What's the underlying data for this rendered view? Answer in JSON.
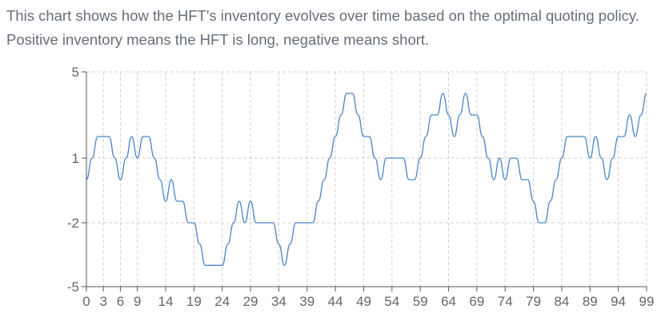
{
  "description": "This chart shows how the HFT's inventory evolves over time based on the optimal quoting policy. Positive inventory means the HFT is long, negative means short.",
  "chart_data": {
    "type": "line",
    "title": "",
    "xlabel": "",
    "ylabel": "",
    "grid": true,
    "xlim": [
      0,
      99
    ],
    "ylim": [
      -5,
      5
    ],
    "x_ticks": [
      0,
      3,
      6,
      9,
      14,
      19,
      24,
      29,
      34,
      39,
      44,
      49,
      54,
      59,
      64,
      69,
      74,
      79,
      84,
      89,
      94,
      99
    ],
    "y_ticks": [
      5,
      1,
      -2,
      -5
    ],
    "series": [
      {
        "color": "#4a86c8",
        "x": [
          0,
          1,
          2,
          3,
          4,
          5,
          6,
          7,
          8,
          9,
          10,
          11,
          12,
          13,
          14,
          15,
          16,
          17,
          18,
          19,
          20,
          21,
          22,
          23,
          24,
          25,
          26,
          27,
          28,
          29,
          30,
          31,
          32,
          33,
          34,
          35,
          36,
          37,
          38,
          39,
          40,
          41,
          42,
          43,
          44,
          45,
          46,
          47,
          48,
          49,
          50,
          51,
          52,
          53,
          54,
          55,
          56,
          57,
          58,
          59,
          60,
          61,
          62,
          63,
          64,
          65,
          66,
          67,
          68,
          69,
          70,
          71,
          72,
          73,
          74,
          75,
          76,
          77,
          78,
          79,
          80,
          81,
          82,
          83,
          84,
          85,
          86,
          87,
          88,
          89,
          90,
          91,
          92,
          93,
          94,
          95,
          96,
          97,
          98,
          99
        ],
        "values": [
          0,
          1,
          2,
          2,
          2,
          1,
          0,
          1,
          2,
          1,
          2,
          2,
          1,
          0,
          -1,
          0,
          -1,
          -1,
          -2,
          -2,
          -3,
          -4,
          -4,
          -4,
          -4,
          -3,
          -2,
          -1,
          -2,
          -1,
          -2,
          -2,
          -2,
          -2,
          -3,
          -4,
          -3,
          -2,
          -2,
          -2,
          -2,
          -1,
          0,
          1,
          2,
          3,
          4,
          4,
          3,
          2,
          2,
          1,
          0,
          1,
          1,
          1,
          1,
          0,
          0,
          1,
          2,
          3,
          3,
          4,
          3,
          2,
          3,
          4,
          3,
          3,
          2,
          1,
          0,
          1,
          0,
          1,
          1,
          0,
          0,
          -1,
          -2,
          -2,
          -1,
          0,
          1,
          2,
          2,
          2,
          2,
          1,
          2,
          1,
          0,
          1,
          2,
          2,
          3,
          2,
          3,
          4
        ]
      }
    ]
  }
}
